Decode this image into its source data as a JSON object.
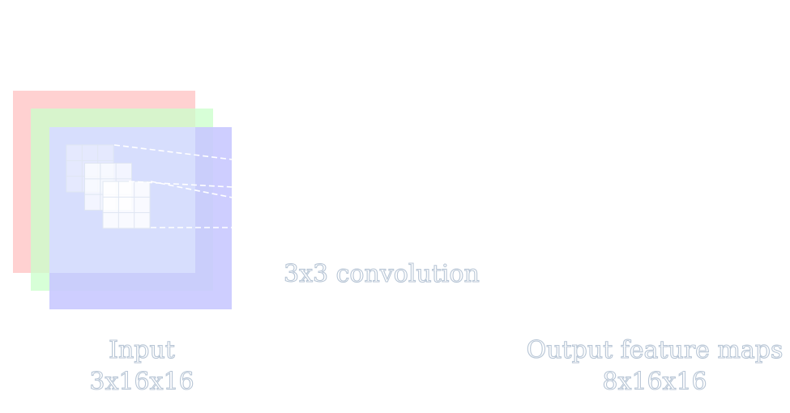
{
  "labels": {
    "convolution": "3x3 convolution",
    "input_title": "Input",
    "input_dims": "3x16x16",
    "output_title": "Output feature maps",
    "output_dims": "8x16x16"
  },
  "input_channels": [
    {
      "color": "#ffc9c9"
    },
    {
      "color": "#c9ffc9"
    },
    {
      "color": "#c9c9ff"
    }
  ],
  "kernel": {
    "rows": 3,
    "cols": 3,
    "stack_depth": 3,
    "fill": "#ffffff",
    "grid": "#dfe6f2"
  },
  "connector_color": "#ffffff"
}
